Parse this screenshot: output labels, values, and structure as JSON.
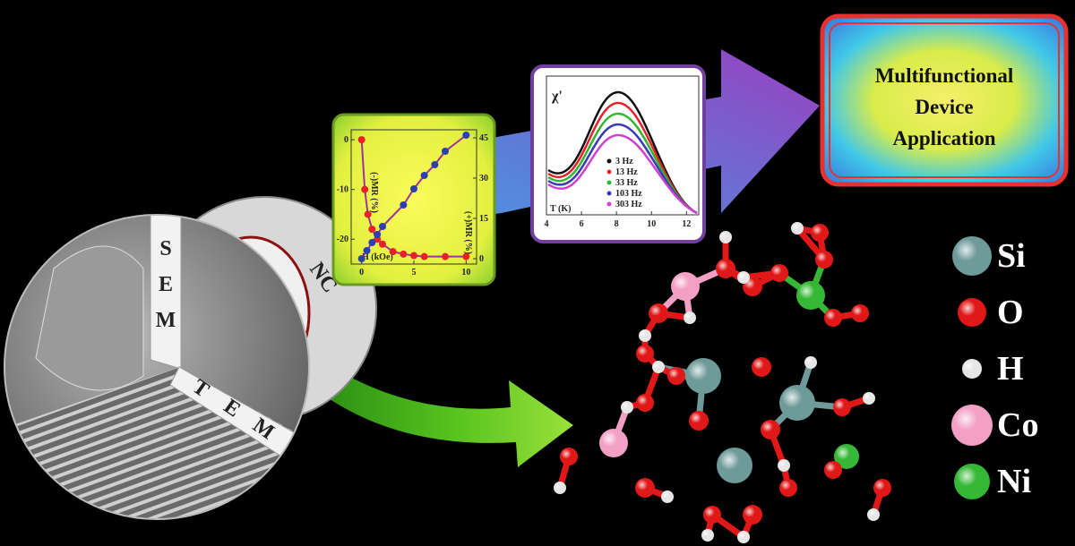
{
  "sem_letters": [
    "S",
    "E",
    "M"
  ],
  "tem_letters": [
    "T",
    "E",
    "M"
  ],
  "nc_label": "NC",
  "mr_chart": {
    "type": "scatter",
    "x_label": "H (kOe)",
    "y_label": "(-)MR (%)",
    "y2_label": "(+)MR (%)",
    "xlim": [
      -1,
      11
    ],
    "xticks": [
      0,
      5,
      10
    ],
    "ylim": [
      -25,
      2
    ],
    "yticks": [
      -20,
      -10,
      0
    ],
    "y2lim": [
      -2,
      48
    ],
    "y2ticks": [
      0,
      15,
      30,
      45
    ],
    "series": [
      {
        "color": "#e8202a",
        "x": [
          0,
          0.3,
          0.6,
          1,
          1.5,
          2,
          3,
          4,
          5,
          6,
          8,
          10
        ],
        "values": [
          0,
          -10,
          -15,
          -18,
          -20,
          -21,
          -22.5,
          -23,
          -23.3,
          -23.5,
          -23.5,
          -23.5
        ]
      },
      {
        "color": "#2b3fb0",
        "axis": "y2",
        "x": [
          0,
          0.5,
          1,
          1.5,
          2,
          4,
          5,
          6,
          7,
          8,
          10
        ],
        "values": [
          0,
          3,
          6,
          9,
          12,
          20,
          26,
          31,
          35,
          40,
          46
        ]
      }
    ]
  },
  "chi_chart": {
    "y_label": "χ'",
    "x_label": "T (K)",
    "xlim": [
      4,
      12.7
    ],
    "xticks": [
      4,
      6,
      8,
      10,
      12
    ],
    "legend": [
      {
        "name": "3 Hz",
        "color": "#111111"
      },
      {
        "name": "13 Hz",
        "color": "#e8202a"
      },
      {
        "name": "33 Hz",
        "color": "#2fb82f"
      },
      {
        "name": "103 Hz",
        "color": "#3a3ab8"
      },
      {
        "name": "303 Hz",
        "color": "#d040d0"
      }
    ]
  },
  "device_box": {
    "lines": [
      "Multifunctional",
      "Device",
      "Application"
    ]
  },
  "elements": [
    {
      "symbol": "Si",
      "color": "#6f9a9a"
    },
    {
      "symbol": "O",
      "color": "#e01818"
    },
    {
      "symbol": "H",
      "color": "#e6e6e6"
    },
    {
      "symbol": "Co",
      "color": "#f2a0c4"
    },
    {
      "symbol": "Ni",
      "color": "#35b835"
    }
  ]
}
